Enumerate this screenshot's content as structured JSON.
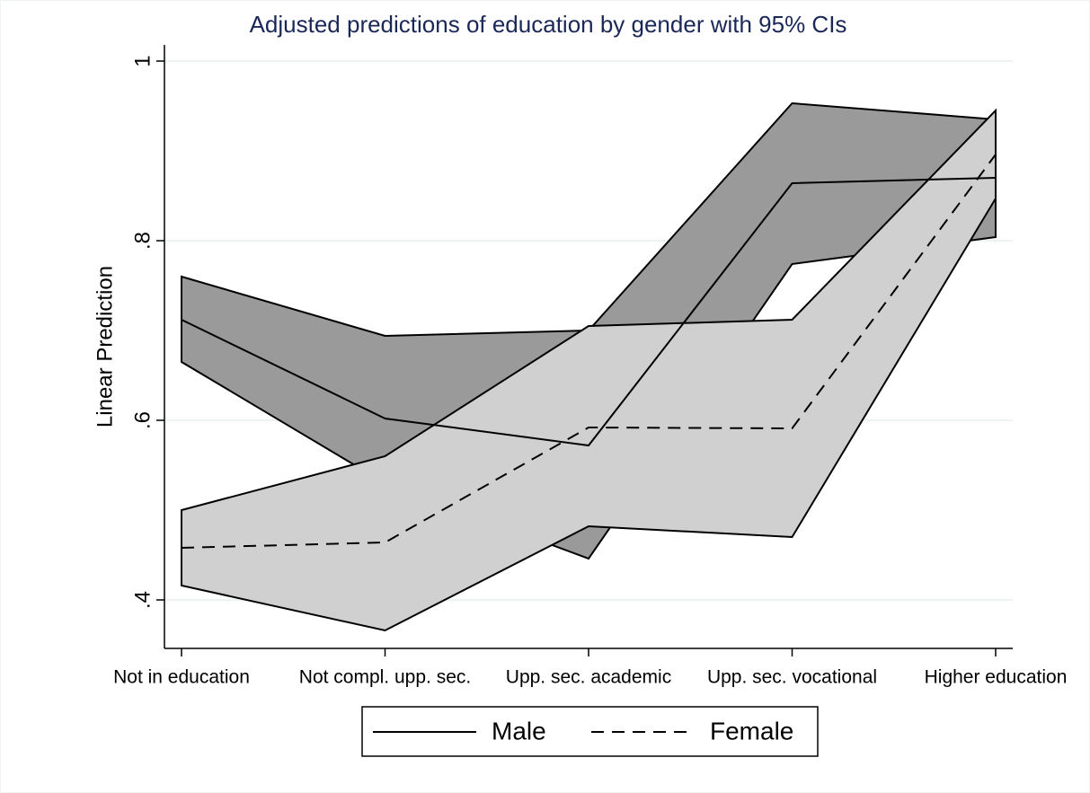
{
  "chart_data": {
    "type": "line",
    "title": "Adjusted predictions of education by gender with 95% CIs",
    "y_label": "Linear Prediction",
    "categories": [
      "Not in education",
      "Not compl. upp. sec.",
      "Upp. sec. academic",
      "Upp. sec. vocational",
      "Higher education"
    ],
    "series": [
      {
        "name": "Male",
        "color": "#000000",
        "line_style": "solid",
        "band_color": "#9a9a9a",
        "values": [
          0.712,
          0.602,
          0.572,
          0.864,
          0.87
        ],
        "lower": [
          0.665,
          0.53,
          0.446,
          0.774,
          0.804
        ],
        "upper": [
          0.76,
          0.694,
          0.7,
          0.953,
          0.935
        ]
      },
      {
        "name": "Female",
        "color": "#000000",
        "line_style": "dashed",
        "band_color": "#d0d0d0",
        "values": [
          0.458,
          0.464,
          0.592,
          0.591,
          0.896
        ],
        "lower": [
          0.416,
          0.366,
          0.482,
          0.47,
          0.847
        ],
        "upper": [
          0.5,
          0.56,
          0.705,
          0.712,
          0.945
        ]
      }
    ],
    "ylim": [
      0.346,
      1.018
    ],
    "yticks": [
      {
        "value": 0.4,
        "label": ".4"
      },
      {
        "value": 0.6,
        "label": ".6"
      },
      {
        "value": 0.8,
        "label": ".8"
      },
      1
    ],
    "grid": true,
    "legend": "bottom"
  }
}
